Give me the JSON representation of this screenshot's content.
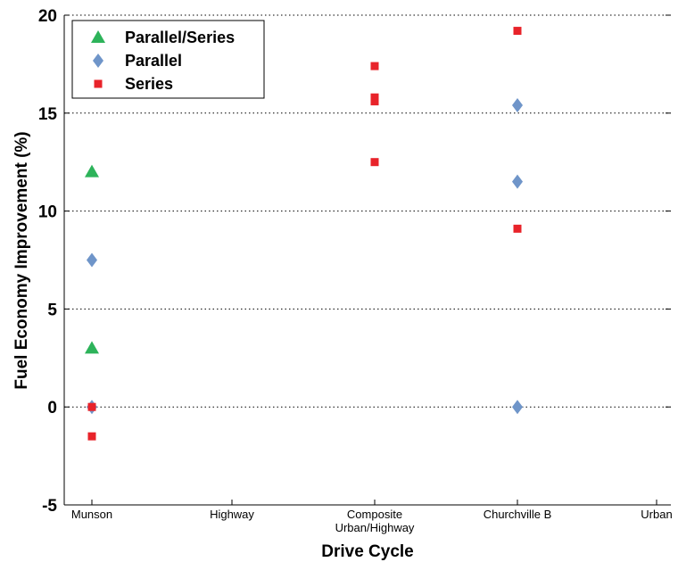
{
  "chart_data": {
    "type": "scatter",
    "title": "",
    "xlabel": "Drive Cycle",
    "ylabel": "Fuel Economy Improvement (%)",
    "categories": [
      "Munson",
      "Highway",
      "Composite\nUrban/Highway",
      "Churchville B",
      "Urban"
    ],
    "ylim": [
      -5,
      20
    ],
    "yticks": [
      -5,
      0,
      5,
      10,
      15,
      20
    ],
    "grid": "horizontal-dotted",
    "legend_position": "top-left",
    "series": [
      {
        "name": "Parallel/Series",
        "marker": "triangle",
        "color": "#2db35a",
        "points": [
          {
            "category": "Munson",
            "y": 12.0
          },
          {
            "category": "Munson",
            "y": 3.0
          }
        ]
      },
      {
        "name": "Parallel",
        "marker": "diamond",
        "color": "#6f95c9",
        "points": [
          {
            "category": "Munson",
            "y": 7.5
          },
          {
            "category": "Munson",
            "y": 0.0
          },
          {
            "category": "Churchville B",
            "y": 15.4
          },
          {
            "category": "Churchville B",
            "y": 11.5
          },
          {
            "category": "Churchville B",
            "y": 0.0
          }
        ]
      },
      {
        "name": "Series",
        "marker": "square",
        "color": "#e8232a",
        "points": [
          {
            "category": "Munson",
            "y": 0.0
          },
          {
            "category": "Munson",
            "y": -1.5
          },
          {
            "category": "Composite\nUrban/Highway",
            "y": 17.4
          },
          {
            "category": "Composite\nUrban/Highway",
            "y": 15.8
          },
          {
            "category": "Composite\nUrban/Highway",
            "y": 15.6
          },
          {
            "category": "Composite\nUrban/Highway",
            "y": 12.5
          },
          {
            "category": "Churchville B",
            "y": 19.2
          },
          {
            "category": "Churchville B",
            "y": 9.1
          }
        ]
      }
    ]
  }
}
